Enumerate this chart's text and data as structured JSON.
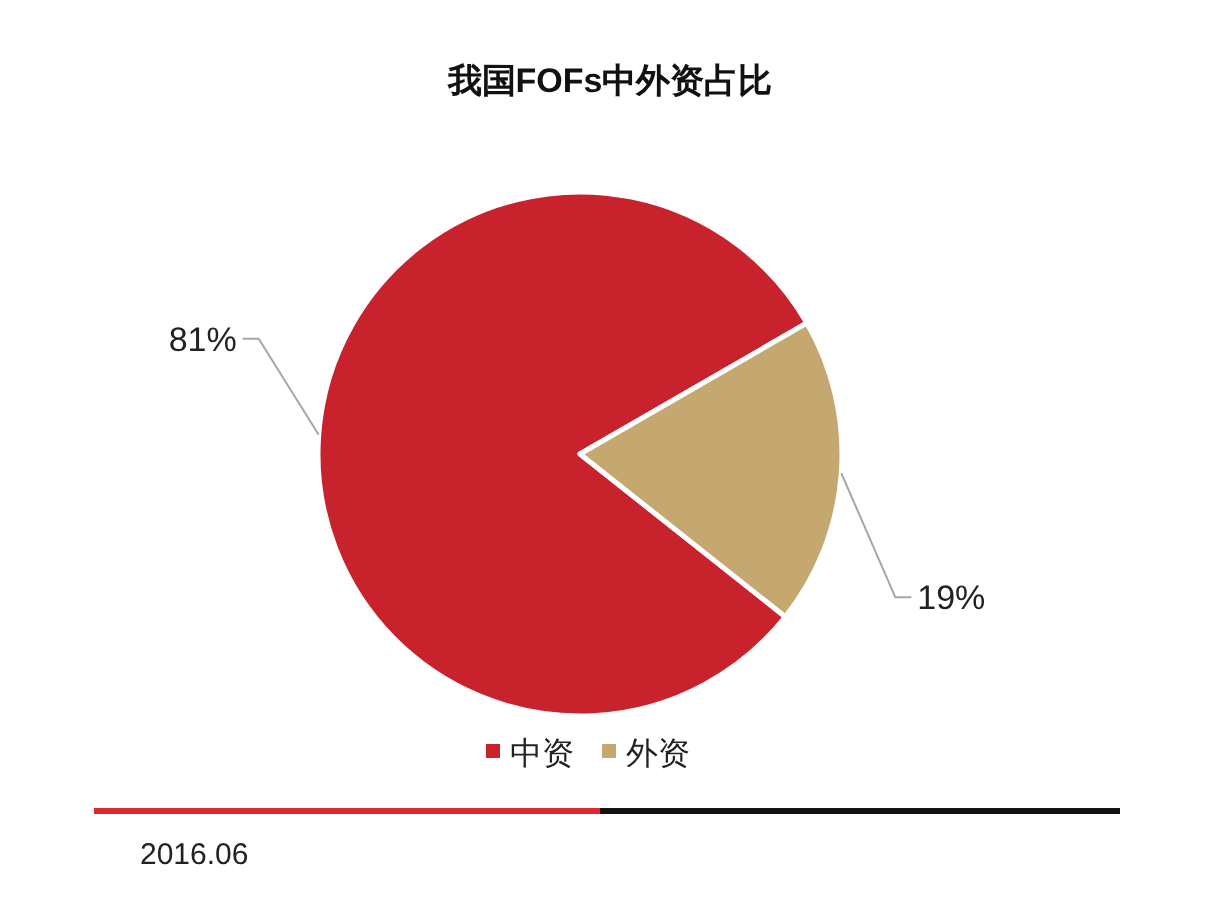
{
  "chart_data": {
    "type": "pie",
    "title": "我国FOFs中外资占比",
    "categories": [
      "中资",
      "外资"
    ],
    "values": [
      81,
      19
    ],
    "colors": [
      "#c8232c",
      "#c5a870"
    ],
    "value_labels": [
      "81%",
      "19%"
    ],
    "legend": "bottom",
    "annotations": [
      "2016.06"
    ]
  }
}
